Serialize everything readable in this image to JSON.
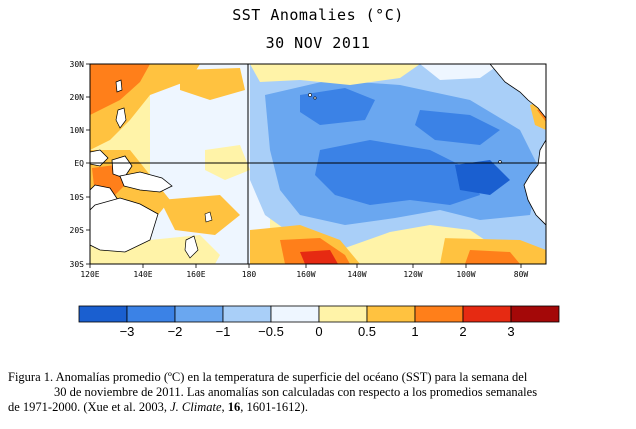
{
  "title": "SST Anomalies (°C)",
  "date": "30 NOV 2011",
  "map": {
    "lat_labels": [
      "30N",
      "20N",
      "10N",
      "EQ",
      "10S",
      "20S",
      "30S"
    ],
    "lon_labels": [
      "120E",
      "140E",
      "160E",
      "180",
      "160W",
      "140W",
      "120W",
      "100W",
      "80W"
    ]
  },
  "colorbar": {
    "colors": [
      "#1a5fd0",
      "#3b82e6",
      "#6aa7f0",
      "#a9cff8",
      "#eef6ff",
      "#fff3a8",
      "#ffc240",
      "#ff7f1a",
      "#e62a12",
      "#a40808"
    ],
    "labels": [
      "−3",
      "−2",
      "−1",
      "−0.5",
      "0",
      "0.5",
      "1",
      "2",
      "3"
    ]
  },
  "caption": {
    "line1": "Figura 1. Anomalías promedio (ºC) en la temperatura de superficie del océano (SST) para la semana del",
    "line2": "30 de noviembre de 2011.  Las anomalías son calculadas con respecto a los promedios semanales",
    "line3a": "de 1971-2000. (Xue et al. 2003, ",
    "journal": "J. Climate",
    "line3b": ", ",
    "volume": "16",
    "line3c": ", 1601-1612)."
  }
}
